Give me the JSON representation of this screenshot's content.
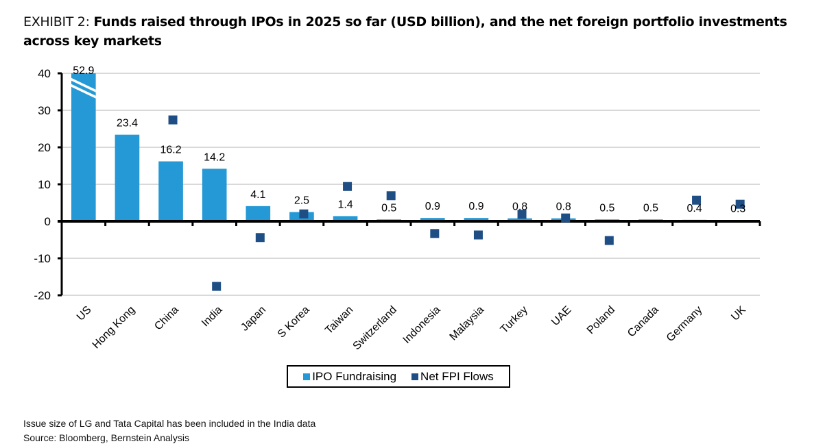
{
  "header": {
    "prefix": "EXHIBIT 2: ",
    "title": "Funds raised through IPOs in 2025 so far (USD billion), and the net foreign portfolio investments across key markets"
  },
  "colors": {
    "ipo": "#2499d5",
    "fpi": "#1f4e85",
    "grid": "#d9d9d9",
    "axis": "#000000"
  },
  "chart_data": {
    "type": "bar",
    "title": "Funds raised through IPOs in 2025 so far (USD billion), and the net foreign portfolio investments across key markets",
    "xlabel": "",
    "ylabel": "",
    "ylim": [
      -20,
      40
    ],
    "yticks": [
      40,
      30,
      20,
      10,
      0,
      -10,
      -20
    ],
    "grid": true,
    "legend_position": "bottom",
    "axis_break": {
      "category": "US",
      "note": "bar truncated at 40, actual value 52.9"
    },
    "categories": [
      "US",
      "Hong Kong",
      "China",
      "India",
      "Japan",
      "S Korea",
      "Taiwan",
      "Switzerland",
      "Indonesia",
      "Malaysia",
      "Turkey",
      "UAE",
      "Poland",
      "Canada",
      "Germany",
      "UK"
    ],
    "series": [
      {
        "name": "IPO Fundraising",
        "type": "bar",
        "values": [
          52.9,
          23.4,
          16.2,
          14.2,
          4.1,
          2.5,
          1.4,
          0.5,
          0.9,
          0.9,
          0.8,
          0.8,
          0.5,
          0.5,
          0.4,
          0.3
        ],
        "labels": [
          "52.9",
          "23.4",
          "16.2",
          "14.2",
          "4.1",
          "2.5",
          "1.4",
          "0.5",
          "0.9",
          "0.9",
          "0.8",
          "0.8",
          "0.5",
          "0.5",
          "0.4",
          "0.3"
        ]
      },
      {
        "name": "Net FPI Flows",
        "type": "scatter",
        "values": [
          null,
          null,
          27.4,
          -17.6,
          -4.4,
          2.0,
          9.4,
          6.9,
          -3.3,
          -3.7,
          1.9,
          0.9,
          -5.2,
          null,
          5.7,
          4.6
        ]
      }
    ]
  },
  "legend": {
    "items": [
      "IPO Fundraising",
      "Net FPI Flows"
    ]
  },
  "footnotes": {
    "note": "Issue size of LG and Tata Capital has been included in the India data",
    "source": "Source: Bloomberg, Bernstein Analysis"
  }
}
